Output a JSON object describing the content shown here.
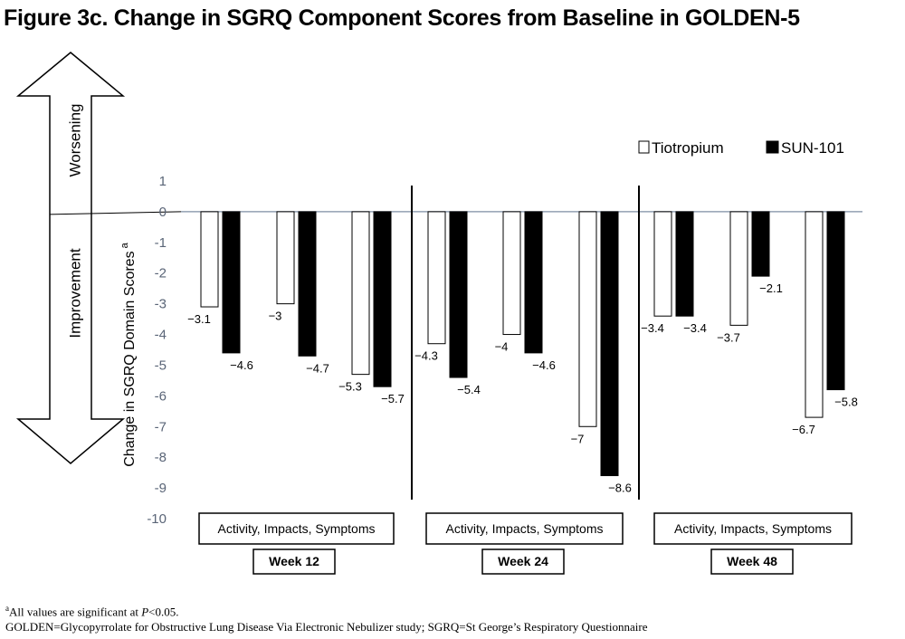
{
  "title": "Figure 3c. Change in SGRQ Component Scores from Baseline in GOLDEN-5",
  "footnotes": {
    "sig_sup": "a",
    "sig_pre": "All values are significant at ",
    "sig_p": "P",
    "sig_post": "<0.05.",
    "abbrev": "GOLDEN=Glycopyrrolate for Obstructive Lung Disease Via Electronic Nebulizer study; SGRQ=St George’s Respiratory Questionnaire"
  },
  "chart_data": {
    "type": "bar",
    "title": "Figure 3c. Change in SGRQ Component Scores from Baseline in GOLDEN-5",
    "ylabel": "Change in SGRQ Domain Scores",
    "ylabel_superscript": "a",
    "ylim": [
      -10,
      1
    ],
    "yticks": [
      1,
      0,
      -1,
      -2,
      -3,
      -4,
      -5,
      -6,
      -7,
      -8,
      -9,
      -10
    ],
    "legend_position": "top-right",
    "grid": false,
    "arrow_labels": {
      "up": "Worsening",
      "down": "Improvement"
    },
    "groups": [
      {
        "week": "Week 12",
        "label": "Activity, Impacts, Symptoms"
      },
      {
        "week": "Week 24",
        "label": "Activity, Impacts, Symptoms"
      },
      {
        "week": "Week 48",
        "label": "Activity, Impacts, Symptoms"
      }
    ],
    "categories": [
      "Activity",
      "Impacts",
      "Symptoms",
      "Activity",
      "Impacts",
      "Symptoms",
      "Activity",
      "Impacts",
      "Symptoms"
    ],
    "series": [
      {
        "name": "Tiotropium",
        "color": "#ffffff",
        "values": [
          -3.1,
          -3,
          -5.3,
          -4.3,
          -4,
          -7,
          -3.4,
          -3.7,
          -6.7
        ]
      },
      {
        "name": "SUN-101",
        "color": "#000000",
        "values": [
          -4.6,
          -4.7,
          -5.7,
          -5.4,
          -4.6,
          -8.6,
          -3.4,
          -2.1,
          -5.8
        ]
      }
    ],
    "data_labels": [
      [
        "−3.1",
        "−3",
        "−5.3",
        "−4.3",
        "−4",
        "−7",
        "−3.4",
        "−3.7",
        "−6.7"
      ],
      [
        "−4.6",
        "−4.7",
        "−5.7",
        "−5.4",
        "−4.6",
        "−8.6",
        "−3.4",
        "−2.1",
        "−5.8"
      ]
    ]
  }
}
